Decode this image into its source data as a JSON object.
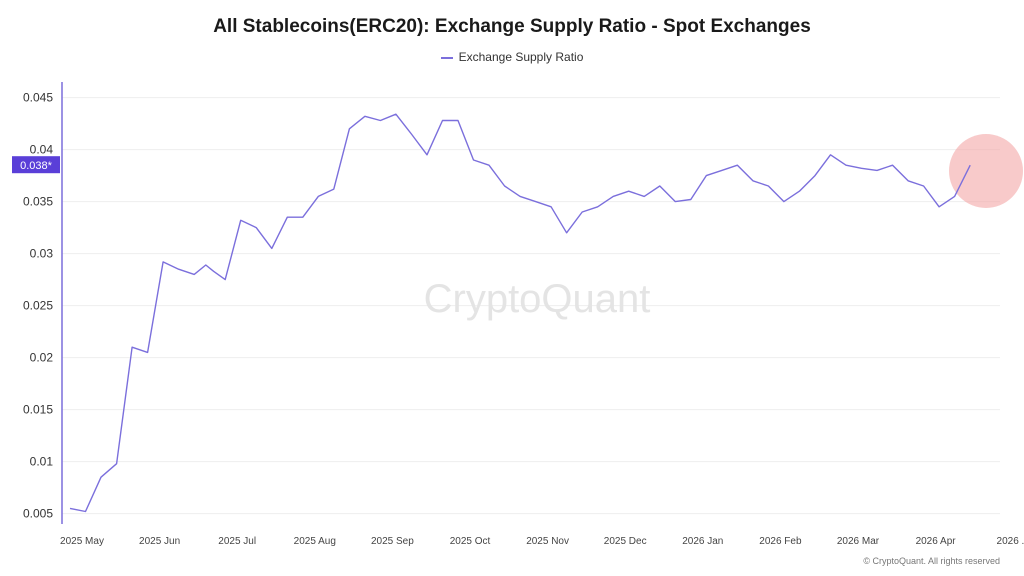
{
  "chart_data": {
    "type": "line",
    "title": "All Stablecoins(ERC20): Exchange Supply Ratio - Spot Exchanges",
    "legend": [
      "Exchange Supply Ratio"
    ],
    "legend_position": "top-center",
    "ylim": [
      0.004,
      0.0465
    ],
    "y_ticks": [
      0.005,
      0.01,
      0.015,
      0.02,
      0.025,
      0.03,
      0.035,
      0.04,
      0.045
    ],
    "y_tick_labels": [
      "0.005",
      "0.01",
      "0.015",
      "0.02",
      "0.025",
      "0.03",
      "0.035",
      "0.04",
      "0.045"
    ],
    "x_tick_labels": [
      "2025 May",
      "2025 Jun",
      "2025 Jul",
      "2025 Aug",
      "2025 Sep",
      "2025 Oct",
      "2025 Nov",
      "2025 Dec",
      "2026 Jan",
      "2026 Feb",
      "2026 Mar",
      "2026 Apr",
      "2026 ..."
    ],
    "grid": true,
    "current_value_label": "0.038*",
    "highlight": "circle around latest values",
    "series": [
      {
        "name": "Exchange Supply Ratio",
        "color": "#7b6fdc",
        "x": [
          0,
          0.2,
          0.4,
          0.6,
          0.8,
          1.0,
          1.2,
          1.4,
          1.6,
          1.75,
          1.85,
          2.0,
          2.2,
          2.4,
          2.6,
          2.8,
          3.0,
          3.2,
          3.4,
          3.6,
          3.8,
          4.0,
          4.2,
          4.4,
          4.6,
          4.8,
          5.0,
          5.2,
          5.4,
          5.6,
          5.8,
          6.0,
          6.2,
          6.4,
          6.6,
          6.8,
          7.0,
          7.2,
          7.4,
          7.6,
          7.8,
          8.0,
          8.2,
          8.4,
          8.6,
          8.8,
          9.0,
          9.2,
          9.4,
          9.6,
          9.8,
          10.0,
          10.2,
          10.4,
          10.6,
          10.8,
          11.0,
          11.2,
          11.4,
          11.6
        ],
        "values": [
          0.0055,
          0.0052,
          0.0085,
          0.0098,
          0.021,
          0.0205,
          0.0292,
          0.0285,
          0.028,
          0.0289,
          0.0283,
          0.0275,
          0.0332,
          0.0325,
          0.0305,
          0.0335,
          0.0335,
          0.0355,
          0.0362,
          0.042,
          0.0432,
          0.0428,
          0.0434,
          0.0415,
          0.0395,
          0.0428,
          0.0428,
          0.039,
          0.0385,
          0.0365,
          0.0355,
          0.035,
          0.0345,
          0.032,
          0.034,
          0.0345,
          0.0355,
          0.036,
          0.0355,
          0.0365,
          0.035,
          0.0352,
          0.0375,
          0.038,
          0.0385,
          0.037,
          0.0365,
          0.035,
          0.036,
          0.0375,
          0.0395,
          0.0385,
          0.0382,
          0.038,
          0.0385,
          0.037,
          0.0365,
          0.0345,
          0.0355,
          0.0385
        ]
      }
    ]
  },
  "watermark": "CryptoQuant",
  "footer": "© CryptoQuant. All rights reserved"
}
